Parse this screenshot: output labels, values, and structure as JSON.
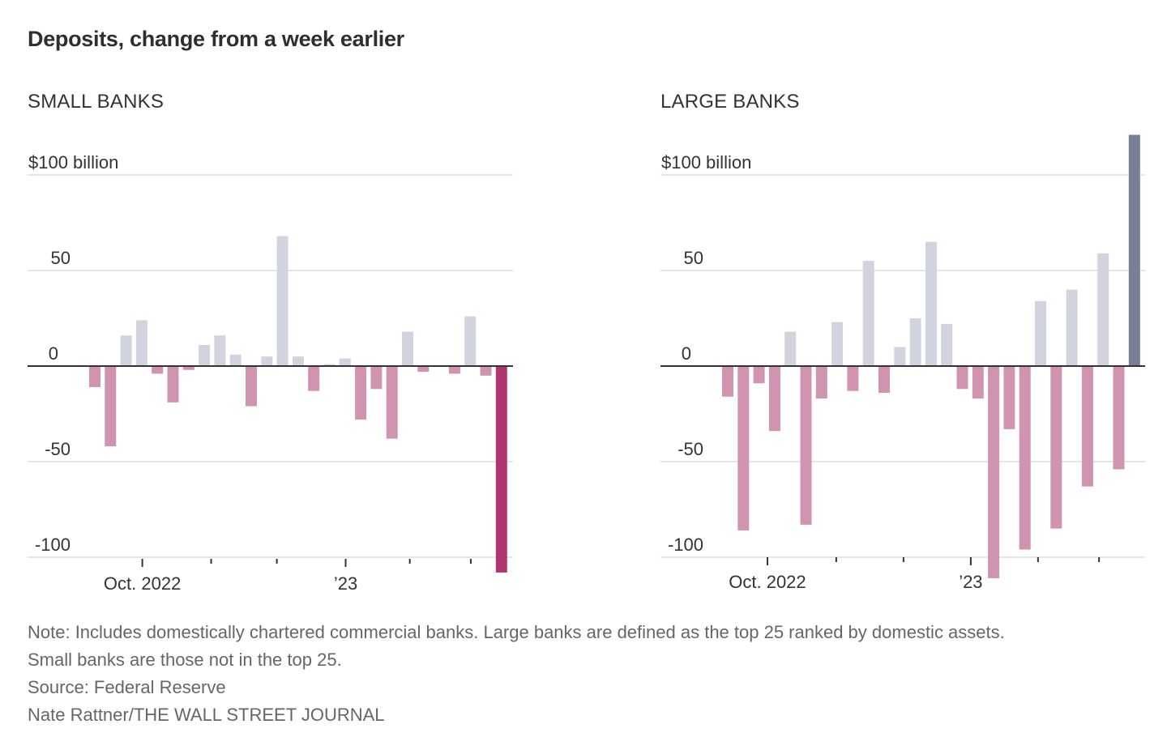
{
  "title": "Deposits, change from a week earlier",
  "colors": {
    "positive": "#d1d4de",
    "negative": "#d094b1",
    "highlight_negative": "#b03672",
    "highlight_positive": "#7b7f96",
    "gridline": "#e6e6e6",
    "zero_line": "#333333"
  },
  "footer": {
    "note_line1": "Note: Includes domestically chartered commercial banks. Large banks are defined as the top 25 ranked by domestic assets.",
    "note_line2": "Small banks are those not in the top 25.",
    "source": "Source:  Federal Reserve",
    "credit": "Nate Rattner/THE WALL STREET JOURNAL"
  },
  "chart_data": [
    {
      "type": "bar",
      "title": "SMALL BANKS",
      "ylabel": "$ billion",
      "ylim": [
        -100,
        100
      ],
      "yticks": [
        100,
        50,
        0,
        -50,
        -100
      ],
      "ytick_labels": [
        "$100 billion",
        "50",
        "0",
        "-50",
        "-100"
      ],
      "grid": true,
      "xtick_labels": [
        {
          "label": "Oct. 2022",
          "bar_index": 3.4
        },
        {
          "label": "",
          "bar_index": 7.8
        },
        {
          "label": "",
          "bar_index": 12.0
        },
        {
          "label": "’23",
          "bar_index": 16.4
        },
        {
          "label": "",
          "bar_index": 20.5
        },
        {
          "label": "",
          "bar_index": 24.4
        }
      ],
      "values": [
        -11,
        -42,
        16,
        24,
        -4,
        -19,
        -2,
        11,
        16,
        6,
        -21,
        5,
        68,
        5,
        -13,
        1,
        4,
        -28,
        -12,
        -38,
        18,
        -3,
        0,
        -4,
        26,
        -5,
        -108
      ],
      "highlight_last": true
    },
    {
      "type": "bar",
      "title": "LARGE BANKS",
      "ylabel": "$ billion",
      "ylim": [
        -100,
        100
      ],
      "yticks": [
        100,
        50,
        0,
        -50,
        -100
      ],
      "ytick_labels": [
        "$100 billion",
        "50",
        "0",
        "-50",
        "-100"
      ],
      "grid": true,
      "xtick_labels": [
        {
          "label": "Oct. 2022",
          "bar_index": 2.9
        },
        {
          "label": "",
          "bar_index": 7.3
        },
        {
          "label": "",
          "bar_index": 11.6
        },
        {
          "label": "’23",
          "bar_index": 15.9
        },
        {
          "label": "",
          "bar_index": 20.2
        },
        {
          "label": "",
          "bar_index": 24.1
        }
      ],
      "values": [
        -16,
        -86,
        -9,
        -34,
        18,
        -83,
        -17,
        23,
        -13,
        55,
        -14,
        10,
        25,
        65,
        22,
        -12,
        -17,
        -111,
        -33,
        -96,
        34,
        -85,
        40,
        -63,
        59,
        -54,
        121
      ],
      "highlight_last": true
    }
  ]
}
